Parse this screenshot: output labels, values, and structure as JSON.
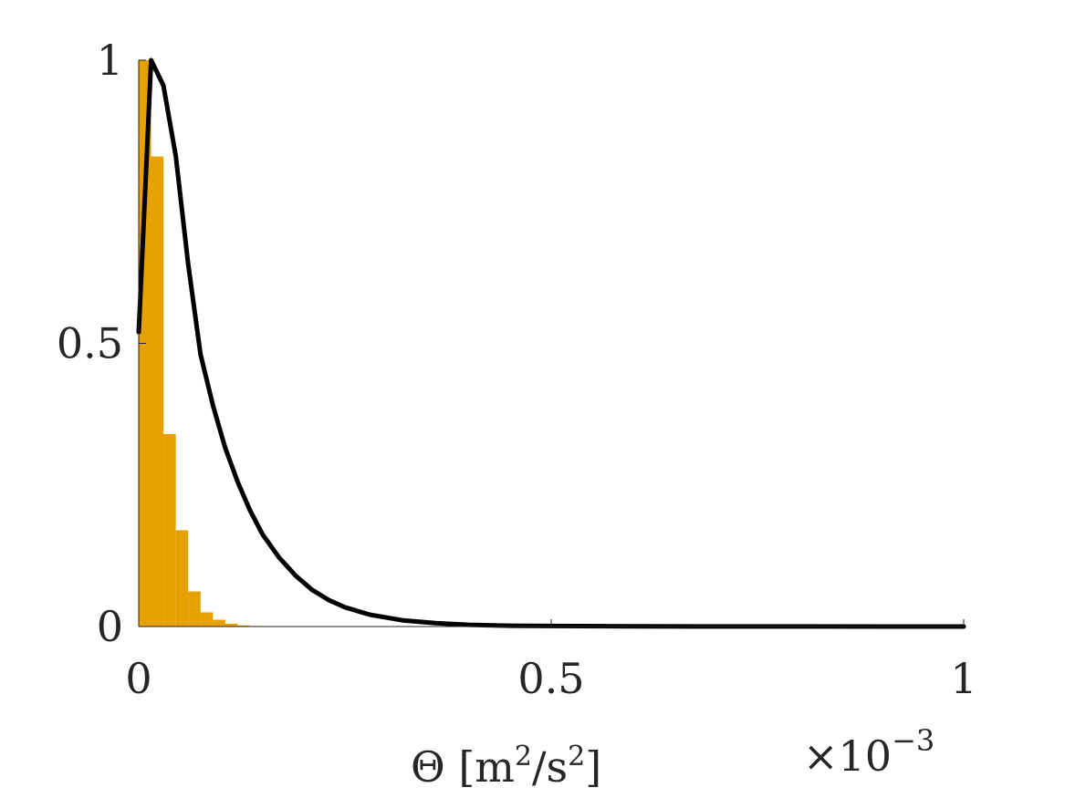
{
  "chart_data": {
    "type": "bar",
    "xlabel": "Θ [m²/s²]",
    "xlabel_parts": {
      "symbol": "Θ [m",
      "sup1": "2",
      "mid": "/s",
      "sup2": "2",
      "close": "]"
    },
    "x_exponent": {
      "base": "×10",
      "power": "−3"
    },
    "xlim": [
      0,
      1
    ],
    "ylim": [
      0,
      1
    ],
    "x_scale_factor": 0.001,
    "xticks": [
      0,
      0.5,
      1
    ],
    "xtick_labels": [
      "0",
      "0.5",
      "1"
    ],
    "yticks": [
      0,
      0.5,
      1
    ],
    "ytick_labels": [
      "0",
      "0.5",
      "1"
    ],
    "grid": false,
    "histogram": {
      "color": "#E6A000",
      "bin_width": 0.015,
      "bin_starts": [
        0,
        0.015,
        0.03,
        0.045,
        0.06,
        0.075,
        0.09,
        0.105,
        0.12,
        0.135
      ],
      "values": [
        1.0,
        0.83,
        0.34,
        0.17,
        0.062,
        0.025,
        0.012,
        0.005,
        0.002,
        0.001
      ]
    },
    "curve": {
      "color": "#000000",
      "x": [
        0,
        0.015,
        0.03,
        0.045,
        0.06,
        0.075,
        0.09,
        0.105,
        0.12,
        0.135,
        0.15,
        0.17,
        0.19,
        0.21,
        0.23,
        0.25,
        0.28,
        0.32,
        0.36,
        0.4,
        0.45,
        0.5,
        0.6,
        0.7,
        0.8,
        0.9,
        1.0
      ],
      "y": [
        0.52,
        1.0,
        0.955,
        0.83,
        0.64,
        0.48,
        0.39,
        0.315,
        0.255,
        0.205,
        0.163,
        0.122,
        0.09,
        0.065,
        0.047,
        0.034,
        0.021,
        0.011,
        0.006,
        0.003,
        0.0015,
        0.001,
        0.0004,
        0.0002,
        0.0001,
        5e-05,
        0.0
      ]
    }
  }
}
